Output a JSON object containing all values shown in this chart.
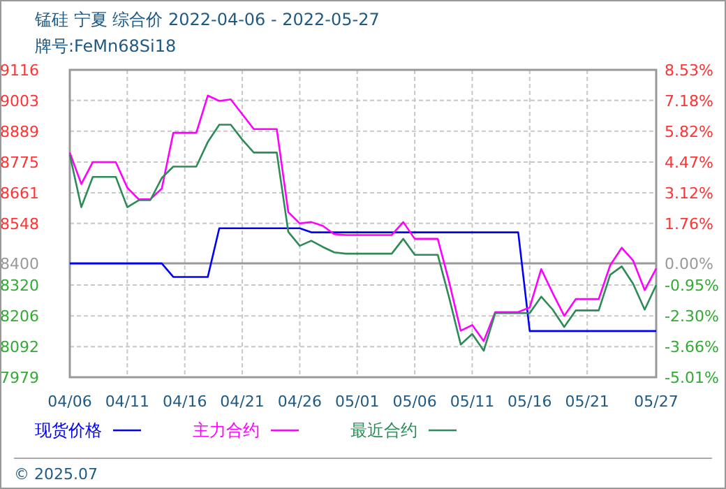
{
  "chart_data": {
    "type": "line",
    "title": "锰硅 宁夏 综合价 2022-04-06 - 2022-05-27",
    "subtitle": "牌号:FeMn68Si18",
    "x": [
      "2022-04-06",
      "2022-04-07",
      "2022-04-08",
      "2022-04-09",
      "2022-04-10",
      "2022-04-11",
      "2022-04-12",
      "2022-04-13",
      "2022-04-14",
      "2022-04-15",
      "2022-04-16",
      "2022-04-17",
      "2022-04-18",
      "2022-04-19",
      "2022-04-20",
      "2022-04-21",
      "2022-04-22",
      "2022-04-23",
      "2022-04-24",
      "2022-04-25",
      "2022-04-26",
      "2022-04-27",
      "2022-04-28",
      "2022-04-29",
      "2022-04-30",
      "2022-05-01",
      "2022-05-02",
      "2022-05-03",
      "2022-05-04",
      "2022-05-05",
      "2022-05-06",
      "2022-05-07",
      "2022-05-08",
      "2022-05-09",
      "2022-05-10",
      "2022-05-11",
      "2022-05-12",
      "2022-05-13",
      "2022-05-14",
      "2022-05-15",
      "2022-05-16",
      "2022-05-17",
      "2022-05-18",
      "2022-05-19",
      "2022-05-20",
      "2022-05-21",
      "2022-05-22",
      "2022-05-23",
      "2022-05-24",
      "2022-05-25",
      "2022-05-26",
      "2022-05-27"
    ],
    "series": [
      {
        "name": "现货价格",
        "color": "#0000ff",
        "values": [
          8400,
          8400,
          8400,
          8400,
          8400,
          8400,
          8400,
          8400,
          8400,
          8350,
          8350,
          8350,
          8350,
          8530,
          8530,
          8530,
          8530,
          8530,
          8530,
          8530,
          8530,
          8515,
          8515,
          8515,
          8515,
          8515,
          8515,
          8515,
          8515,
          8515,
          8515,
          8515,
          8515,
          8515,
          8515,
          8515,
          8515,
          8515,
          8515,
          8515,
          8150,
          8150,
          8150,
          8150,
          8150,
          8150,
          8150,
          8150,
          8150,
          8150,
          8150,
          8150
        ]
      },
      {
        "name": "主力合约",
        "color": "#ff00ff",
        "values": [
          8810,
          8694,
          8775,
          8775,
          8775,
          8680,
          8637,
          8637,
          8677,
          8883,
          8883,
          8883,
          9021,
          9001,
          9007,
          8952,
          8897,
          8897,
          8897,
          8590,
          8548,
          8553,
          8539,
          8508,
          8505,
          8505,
          8505,
          8505,
          8505,
          8553,
          8491,
          8491,
          8491,
          8330,
          8151,
          8172,
          8113,
          8220,
          8220,
          8220,
          8237,
          8379,
          8290,
          8206,
          8268,
          8268,
          8268,
          8393,
          8458,
          8410,
          8301,
          8381
        ]
      },
      {
        "name": "最近合约",
        "color": "#2e8b57",
        "values": [
          8802,
          8608,
          8720,
          8720,
          8720,
          8608,
          8634,
          8634,
          8716,
          8758,
          8758,
          8758,
          8849,
          8913,
          8913,
          8858,
          8810,
          8810,
          8810,
          8517,
          8465,
          8484,
          8461,
          8441,
          8436,
          8436,
          8436,
          8436,
          8436,
          8491,
          8432,
          8432,
          8432,
          8272,
          8100,
          8139,
          8077,
          8216,
          8216,
          8216,
          8216,
          8277,
          8229,
          8165,
          8226,
          8226,
          8226,
          8358,
          8389,
          8324,
          8229,
          8320
        ]
      }
    ],
    "xlim": [
      "2022-04-06",
      "2022-05-27"
    ],
    "xticks": [
      {
        "value": "2022-04-06",
        "label": "04/06"
      },
      {
        "value": "2022-04-11",
        "label": "04/11"
      },
      {
        "value": "2022-04-16",
        "label": "04/16"
      },
      {
        "value": "2022-04-21",
        "label": "04/21"
      },
      {
        "value": "2022-04-26",
        "label": "04/26"
      },
      {
        "value": "2022-05-01",
        "label": "05/01"
      },
      {
        "value": "2022-05-06",
        "label": "05/06"
      },
      {
        "value": "2022-05-11",
        "label": "05/11"
      },
      {
        "value": "2022-05-16",
        "label": "05/16"
      },
      {
        "value": "2022-05-21",
        "label": "05/21"
      },
      {
        "value": "2022-05-27",
        "label": "05/27"
      }
    ],
    "ylim": [
      7979,
      9116
    ],
    "yticks": [
      7979,
      8092,
      8206,
      8320,
      8400,
      8548,
      8661,
      8775,
      8889,
      9003,
      9116
    ],
    "y2lim": [
      -5.01,
      8.53
    ],
    "y2ticks": [
      {
        "value": -5.01,
        "label": "-5.01%"
      },
      {
        "value": -3.66,
        "label": "-3.66%"
      },
      {
        "value": -2.3,
        "label": "-2.30%"
      },
      {
        "value": -0.95,
        "label": "-0.95%"
      },
      {
        "value": 0,
        "label": "0.00%"
      },
      {
        "value": 1.76,
        "label": "1.76%"
      },
      {
        "value": 3.12,
        "label": "3.12%"
      },
      {
        "value": 4.47,
        "label": "4.47%"
      },
      {
        "value": 5.82,
        "label": "5.82%"
      },
      {
        "value": 7.18,
        "label": "7.18%"
      },
      {
        "value": 8.53,
        "label": "8.53%"
      }
    ],
    "ref_lines": [
      {
        "axis": "y",
        "value": 8400,
        "color": "#999999"
      }
    ],
    "grid": true,
    "legend": "bottom",
    "annotations": [
      "© 2025.07"
    ]
  }
}
